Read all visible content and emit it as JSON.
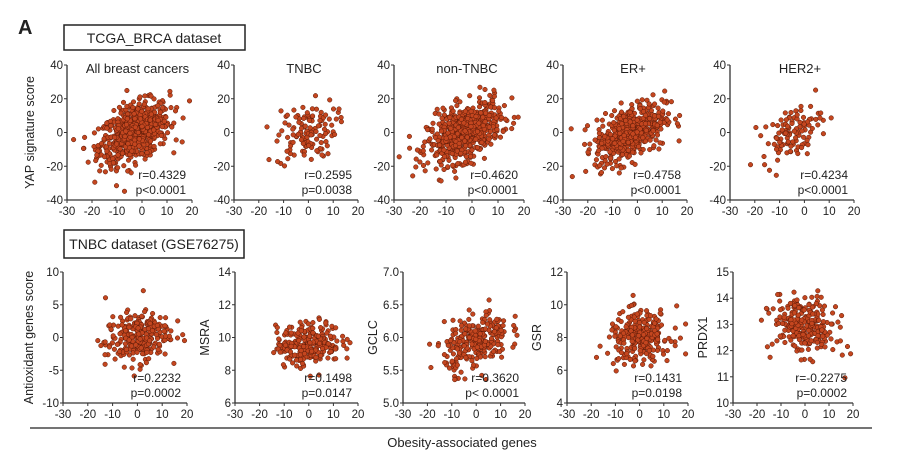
{
  "figure": {
    "panel_letter": "A",
    "top_dataset_label": "TCGA_BRCA dataset",
    "bottom_dataset_label": "TNBC dataset (GSE76275)",
    "shared_xlabel": "Obesity-associated genes",
    "point_color": "#c4461f",
    "point_edge_color": "#5a1a08"
  },
  "chart_data": [
    {
      "type": "scatter",
      "row": "top",
      "title": "All breast cancers",
      "ylabel": "YAP signature score",
      "xlim": [
        -30,
        20
      ],
      "ylim": [
        -40,
        40
      ],
      "xticks": [
        "-30",
        "-20",
        "-10",
        "0",
        "10",
        "20"
      ],
      "yticks": [
        "-40",
        "-20",
        "0",
        "20",
        "40"
      ],
      "r_label": "r=0.4329",
      "p_label": "p<0.0001",
      "r": 0.4329,
      "n": 700,
      "x_center": -3,
      "x_sd": 7,
      "y_center": 0,
      "y_sd": 9
    },
    {
      "type": "scatter",
      "row": "top",
      "title": "TNBC",
      "ylabel": "",
      "xlim": [
        -30,
        20
      ],
      "ylim": [
        -40,
        40
      ],
      "xticks": [
        "-30",
        "-20",
        "-10",
        "0",
        "10",
        "20"
      ],
      "yticks": [
        "-40",
        "-20",
        "0",
        "20",
        "40"
      ],
      "r_label": "r=0.2595",
      "p_label": "p=0.0038",
      "r": 0.2595,
      "n": 120,
      "x_center": -1,
      "x_sd": 6,
      "y_center": 0,
      "y_sd": 9
    },
    {
      "type": "scatter",
      "row": "top",
      "title": "non-TNBC",
      "ylabel": "",
      "xlim": [
        -30,
        20
      ],
      "ylim": [
        -40,
        40
      ],
      "xticks": [
        "-30",
        "-20",
        "-10",
        "0",
        "10",
        "20"
      ],
      "yticks": [
        "-40",
        "-20",
        "0",
        "20",
        "40"
      ],
      "r_label": "r=0.4620",
      "p_label": "p<0.0001",
      "r": 0.462,
      "n": 600,
      "x_center": -3,
      "x_sd": 7,
      "y_center": 0,
      "y_sd": 9
    },
    {
      "type": "scatter",
      "row": "top",
      "title": "ER+",
      "ylabel": "",
      "xlim": [
        -30,
        20
      ],
      "ylim": [
        -40,
        40
      ],
      "xticks": [
        "-30",
        "-20",
        "-10",
        "0",
        "10",
        "20"
      ],
      "yticks": [
        "-40",
        "-20",
        "0",
        "20",
        "40"
      ],
      "r_label": "r=0.4758",
      "p_label": "p<0.0001",
      "r": 0.4758,
      "n": 500,
      "x_center": -3,
      "x_sd": 7,
      "y_center": 0,
      "y_sd": 9
    },
    {
      "type": "scatter",
      "row": "top",
      "title": "HER2+",
      "ylabel": "",
      "xlim": [
        -30,
        20
      ],
      "ylim": [
        -40,
        40
      ],
      "xticks": [
        "-30",
        "-20",
        "-10",
        "0",
        "10",
        "20"
      ],
      "yticks": [
        "-40",
        "-20",
        "0",
        "20",
        "40"
      ],
      "r_label": "r=0.4234",
      "p_label": "p<0.0001",
      "r": 0.4234,
      "n": 110,
      "x_center": -5,
      "x_sd": 6,
      "y_center": 0,
      "y_sd": 8
    },
    {
      "type": "scatter",
      "row": "bottom",
      "title": "",
      "ylabel": "Antioxidant genes score",
      "xlim": [
        -30,
        20
      ],
      "ylim": [
        -10,
        10
      ],
      "xticks": [
        "-30",
        "-20",
        "-10",
        "0",
        "10",
        "20"
      ],
      "yticks": [
        "-10",
        "-5",
        "0",
        "5",
        "10"
      ],
      "r_label": "r=0.2232",
      "p_label": "p=0.0002",
      "r": 0.2232,
      "n": 260,
      "x_center": 0,
      "x_sd": 6.5,
      "y_center": 0,
      "y_sd": 2
    },
    {
      "type": "scatter",
      "row": "bottom",
      "title": "",
      "ylabel": "MSRA",
      "xlim": [
        -30,
        20
      ],
      "ylim": [
        6,
        14
      ],
      "xticks": [
        "-30",
        "-20",
        "-10",
        "0",
        "10",
        "20"
      ],
      "yticks": [
        "6",
        "8",
        "10",
        "12",
        "14"
      ],
      "r_label": "r=0.1498",
      "p_label": "p=0.0147",
      "r": 0.1498,
      "n": 260,
      "x_center": 0,
      "x_sd": 6.5,
      "y_center": 9.6,
      "y_sd": 0.65
    },
    {
      "type": "scatter",
      "row": "bottom",
      "title": "",
      "ylabel": "GCLC",
      "xlim": [
        -30,
        20
      ],
      "ylim": [
        5.0,
        7.0
      ],
      "xticks": [
        "-30",
        "-20",
        "-10",
        "0",
        "10",
        "20"
      ],
      "yticks": [
        "5.0",
        "5.5",
        "6.0",
        "6.5",
        "7.0"
      ],
      "r_label": "r=0.3620",
      "p_label": "p< 0.0001",
      "r": 0.362,
      "n": 260,
      "x_center": 0,
      "x_sd": 6.5,
      "y_center": 5.95,
      "y_sd": 0.22
    },
    {
      "type": "scatter",
      "row": "bottom",
      "title": "",
      "ylabel": "GSR",
      "xlim": [
        -30,
        20
      ],
      "ylim": [
        4,
        12
      ],
      "xticks": [
        "-30",
        "-20",
        "-10",
        "0",
        "10",
        "20"
      ],
      "yticks": [
        "4",
        "6",
        "8",
        "10",
        "12"
      ],
      "r_label": "r=0.1431",
      "p_label": "p=0.0198",
      "r": 0.1431,
      "n": 260,
      "x_center": 0,
      "x_sd": 6.5,
      "y_center": 8,
      "y_sd": 0.8
    },
    {
      "type": "scatter",
      "row": "bottom",
      "title": "",
      "ylabel": "PRDX1",
      "xlim": [
        -30,
        20
      ],
      "ylim": [
        10,
        15
      ],
      "xticks": [
        "-30",
        "-20",
        "-10",
        "0",
        "10",
        "20"
      ],
      "yticks": [
        "10",
        "11",
        "12",
        "13",
        "14",
        "15"
      ],
      "r_label": "r=-0.2275",
      "p_label": "p=0.0002",
      "r": -0.2275,
      "n": 260,
      "x_center": 0,
      "x_sd": 6.5,
      "y_center": 12.9,
      "y_sd": 0.55
    }
  ]
}
